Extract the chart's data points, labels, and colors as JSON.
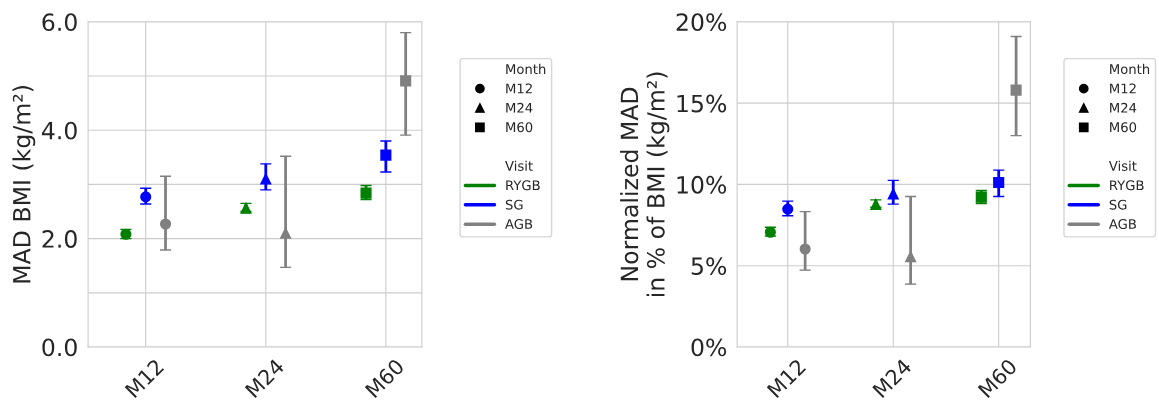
{
  "chart_data": [
    {
      "type": "scatter",
      "ylabel": "MAD BMI (kg/m²)",
      "categories": [
        "M12",
        "M24",
        "M60"
      ],
      "marker": [
        "circle",
        "triangle",
        "square"
      ],
      "legend_title": [
        "Month",
        "Visit"
      ],
      "legend": "right",
      "grid": true,
      "ylim": [
        0,
        6
      ],
      "yticks": [
        {
          "value": 0,
          "label": "0.0"
        },
        {
          "value": 1,
          "label": null
        },
        {
          "value": 2,
          "label": "2.0"
        },
        {
          "value": 3,
          "label": null
        },
        {
          "value": 4,
          "label": "4.0"
        },
        {
          "value": 5,
          "label": null
        },
        {
          "value": 6,
          "label": "6.0"
        }
      ],
      "series": [
        {
          "name": "RYGB",
          "color": "#008000",
          "values": [
            2.08,
            2.56,
            2.84
          ],
          "errors": [
            [
              2.0,
              2.17
            ],
            [
              2.5,
              2.65
            ],
            [
              2.72,
              2.98
            ]
          ]
        },
        {
          "name": "SG",
          "color": "#0000ff",
          "values": [
            2.77,
            3.1,
            3.54
          ],
          "errors": [
            [
              2.64,
              2.93
            ],
            [
              2.9,
              3.38
            ],
            [
              3.23,
              3.8
            ]
          ]
        },
        {
          "name": "AGB",
          "color": "#808080",
          "values": [
            2.27,
            2.1,
            4.91
          ],
          "errors": [
            [
              1.79,
              3.15
            ],
            [
              1.47,
              3.52
            ],
            [
              3.91,
              5.8
            ]
          ]
        }
      ]
    },
    {
      "type": "scatter",
      "ylabel": "Normalized MAD\nin % of BMI (kg/m²)",
      "categories": [
        "M12",
        "M24",
        "M60"
      ],
      "marker": [
        "circle",
        "triangle",
        "square"
      ],
      "legend_title": [
        "Month",
        "Visit"
      ],
      "legend": "right",
      "grid": true,
      "ylim": [
        0,
        20
      ],
      "yticks": [
        {
          "value": 0,
          "label": "0%"
        },
        {
          "value": 5,
          "label": "5%"
        },
        {
          "value": 10,
          "label": "10%"
        },
        {
          "value": 15,
          "label": "15%"
        },
        {
          "value": 20,
          "label": "20%"
        }
      ],
      "series": [
        {
          "name": "RYGB",
          "color": "#008000",
          "values": [
            7.06,
            8.77,
            9.22
          ],
          "errors": [
            [
              6.83,
              7.37
            ],
            [
              8.6,
              9.05
            ],
            [
              8.83,
              9.63
            ]
          ]
        },
        {
          "name": "SG",
          "color": "#0000ff",
          "values": [
            8.48,
            9.42,
            10.12
          ],
          "errors": [
            [
              8.07,
              8.97
            ],
            [
              8.79,
              10.25
            ],
            [
              9.26,
              10.88
            ]
          ]
        },
        {
          "name": "AGB",
          "color": "#808080",
          "values": [
            6.03,
            5.56,
            15.8
          ],
          "errors": [
            [
              4.73,
              8.33
            ],
            [
              3.87,
              9.26
            ],
            [
              13.0,
              19.1
            ]
          ]
        }
      ]
    }
  ]
}
